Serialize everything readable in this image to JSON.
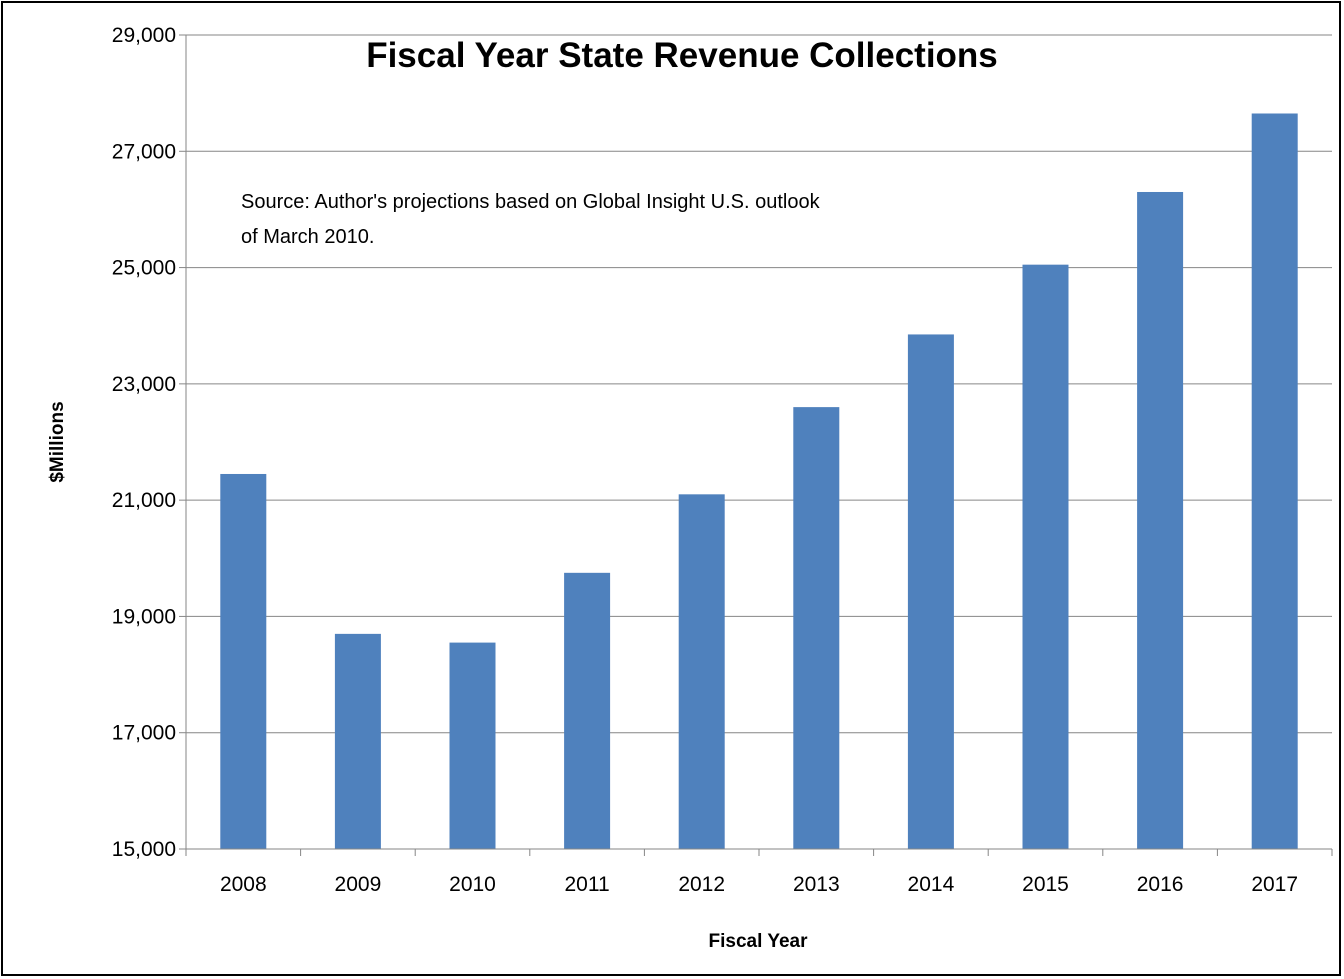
{
  "chart_data": {
    "type": "bar",
    "title": "Fiscal Year State Revenue Collections",
    "xlabel": "Fiscal Year",
    "ylabel": "$Millions",
    "annotation_lines": [
      "Source:  Author's projections based on Global Insight U.S. outlook",
      "of March 2010."
    ],
    "categories": [
      "2008",
      "2009",
      "2010",
      "2011",
      "2012",
      "2013",
      "2014",
      "2015",
      "2016",
      "2017"
    ],
    "values": [
      21450,
      18700,
      18550,
      19750,
      21100,
      22600,
      23850,
      25050,
      26300,
      27650
    ],
    "ylim": [
      15000,
      29000
    ],
    "yticks": [
      15000,
      17000,
      19000,
      21000,
      23000,
      25000,
      27000,
      29000
    ],
    "ytick_labels": [
      "15,000",
      "17,000",
      "19,000",
      "21,000",
      "23,000",
      "25,000",
      "27,000",
      "29,000"
    ],
    "grid": true,
    "legend": "none",
    "colors": {
      "bar": "#4f81bd",
      "grid": "#868686",
      "axis": "#868686"
    }
  }
}
